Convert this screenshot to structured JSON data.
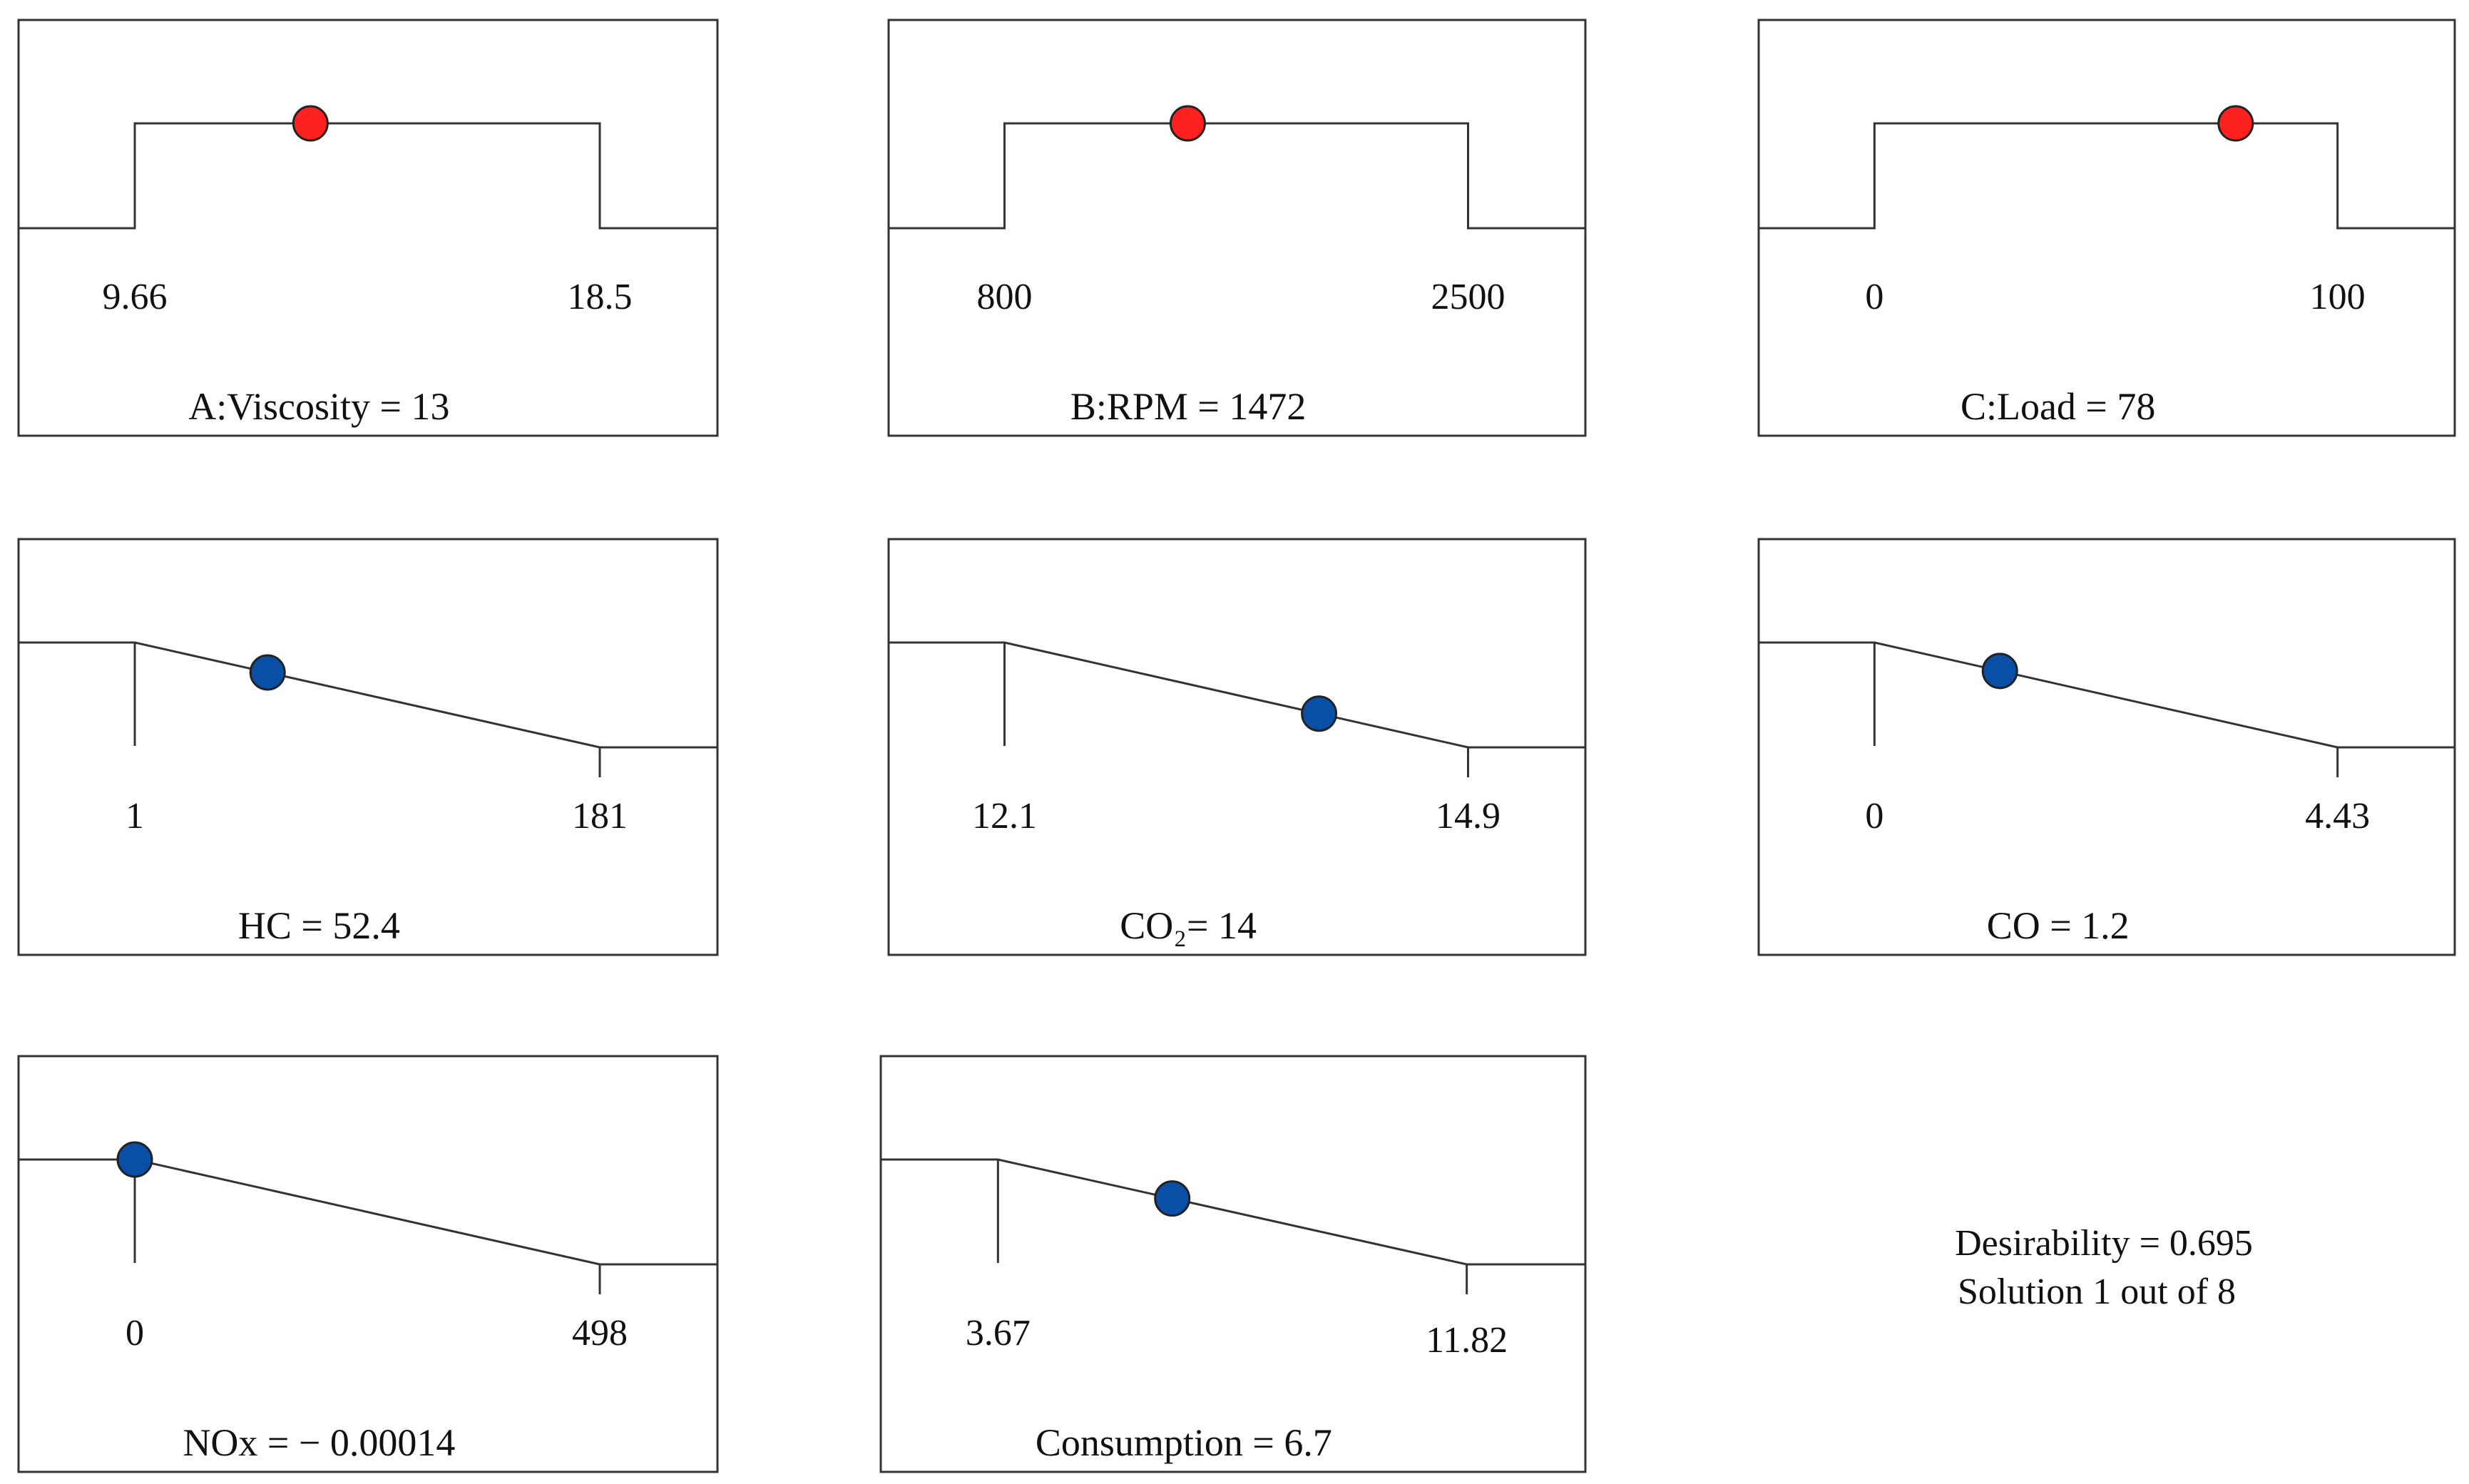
{
  "chart_data": [
    {
      "type": "desirability-ramp",
      "kind": "factor",
      "shape": "range",
      "low": "9.66",
      "high": "18.5",
      "label": "A:Viscosity = 13",
      "low_value": 9.66,
      "high_value": 18.5,
      "value": 13,
      "dot_color": "#ff2020"
    },
    {
      "type": "desirability-ramp",
      "kind": "factor",
      "shape": "range",
      "low": "800",
      "high": "2500",
      "label": "B:RPM = 1472",
      "low_value": 800,
      "high_value": 2500,
      "value": 1472,
      "dot_color": "#ff2020"
    },
    {
      "type": "desirability-ramp",
      "kind": "factor",
      "shape": "range",
      "low": "0",
      "high": "100",
      "label": "C:Load = 78",
      "low_value": 0,
      "high_value": 100,
      "value": 78,
      "dot_color": "#ff2020"
    },
    {
      "type": "desirability-ramp",
      "kind": "response",
      "shape": "minimize",
      "low": "1",
      "high": "181",
      "label": "HC = 52.4",
      "low_value": 1,
      "high_value": 181,
      "value": 52.4,
      "dot_color": "#0a4fa6"
    },
    {
      "type": "desirability-ramp",
      "kind": "response",
      "shape": "minimize",
      "low": "12.1",
      "high": "14.9",
      "label": "CO₂= 14",
      "low_value": 12.1,
      "high_value": 14.9,
      "value": 14,
      "dot_color": "#0a4fa6"
    },
    {
      "type": "desirability-ramp",
      "kind": "response",
      "shape": "minimize",
      "low": "0",
      "high": "4.43",
      "label": "CO = 1.2",
      "low_value": 0,
      "high_value": 4.43,
      "value": 1.2,
      "dot_color": "#0a4fa6"
    },
    {
      "type": "desirability-ramp",
      "kind": "response",
      "shape": "minimize",
      "low": "0",
      "high": "498",
      "label": "NOx = − 0.00014",
      "low_value": 0,
      "high_value": 498,
      "value": -0.00014,
      "dot_color": "#0a4fa6"
    },
    {
      "type": "desirability-ramp",
      "kind": "response",
      "shape": "minimize",
      "low": "3.67",
      "high": "11.82",
      "label": "Consumption = 6.7",
      "low_value": 3.67,
      "high_value": 11.82,
      "value": 6.7,
      "dot_color": "#0a4fa6"
    }
  ],
  "summary": {
    "desirability": "Desirability = 0.695",
    "solution": "Solution 1 out of 8"
  }
}
